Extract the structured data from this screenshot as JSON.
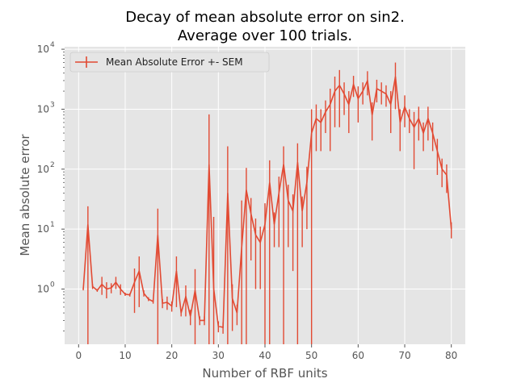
{
  "chart_data": {
    "type": "line",
    "title": [
      "Decay of mean absolute error on sin2.",
      "Average over 100 trials."
    ],
    "xlabel": "Number of RBF units",
    "ylabel": "Mean absolute error",
    "yscale": "log",
    "xlim": [
      -3,
      83
    ],
    "ylim": [
      0.12,
      11000
    ],
    "xticks": [
      0,
      10,
      20,
      30,
      40,
      50,
      60,
      70,
      80
    ],
    "yticks": [
      {
        "value": 1,
        "base": "10",
        "exp": "0"
      },
      {
        "value": 10,
        "base": "10",
        "exp": "1"
      },
      {
        "value": 100,
        "base": "10",
        "exp": "2"
      },
      {
        "value": 1000,
        "base": "10",
        "exp": "3"
      },
      {
        "value": 10000,
        "base": "10",
        "exp": "4"
      }
    ],
    "grid": true,
    "legend_position": "top-left",
    "series": [
      {
        "name": "Mean Absolute Error +- SEM",
        "color": "#e24a33",
        "x": [
          1,
          2,
          3,
          4,
          5,
          6,
          7,
          8,
          9,
          10,
          11,
          12,
          13,
          14,
          15,
          16,
          17,
          18,
          19,
          20,
          21,
          22,
          23,
          24,
          25,
          26,
          27,
          28,
          29,
          30,
          31,
          32,
          33,
          34,
          35,
          36,
          37,
          38,
          39,
          40,
          41,
          42,
          43,
          44,
          45,
          46,
          47,
          48,
          49,
          50,
          51,
          52,
          53,
          54,
          55,
          56,
          57,
          58,
          59,
          60,
          61,
          62,
          63,
          64,
          65,
          66,
          67,
          68,
          69,
          70,
          71,
          72,
          73,
          74,
          75,
          76,
          77,
          78,
          79,
          80
        ],
        "y": [
          1.0,
          12,
          1.1,
          0.95,
          1.2,
          1.0,
          1.05,
          1.3,
          1.0,
          0.82,
          0.8,
          1.3,
          2.0,
          0.85,
          0.68,
          0.62,
          8.0,
          0.58,
          0.6,
          0.52,
          2.0,
          0.4,
          0.75,
          0.35,
          0.95,
          0.3,
          0.3,
          120,
          1.0,
          0.24,
          0.23,
          40,
          0.7,
          0.4,
          5.0,
          45,
          18,
          8,
          6,
          12,
          60,
          12,
          40,
          120,
          30,
          20,
          130,
          20,
          60,
          400,
          700,
          600,
          900,
          1200,
          2000,
          2500,
          1800,
          1200,
          2600,
          1500,
          2000,
          3000,
          800,
          2200,
          2000,
          1800,
          1200,
          3500,
          600,
          1100,
          700,
          500,
          700,
          400,
          700,
          400,
          200,
          100,
          80,
          10
        ],
        "err": [
          0.05,
          12,
          0.1,
          0.05,
          0.4,
          0.3,
          0.2,
          0.3,
          0.2,
          0.05,
          0.05,
          0.9,
          1.5,
          0.1,
          0.05,
          0.05,
          14,
          0.1,
          0.15,
          0.1,
          1.5,
          0.05,
          0.4,
          0.1,
          1.2,
          0.05,
          0.05,
          700,
          15,
          0.05,
          0.05,
          200,
          0.5,
          0.15,
          25,
          60,
          15,
          7,
          5,
          15,
          80,
          7,
          35,
          120,
          25,
          18,
          140,
          15,
          50,
          600,
          500,
          400,
          500,
          1000,
          1500,
          2000,
          1000,
          800,
          1000,
          900,
          800,
          1300,
          500,
          900,
          800,
          700,
          800,
          2500,
          400,
          600,
          300,
          400,
          400,
          200,
          400,
          200,
          120,
          50,
          40,
          3
        ]
      }
    ]
  }
}
